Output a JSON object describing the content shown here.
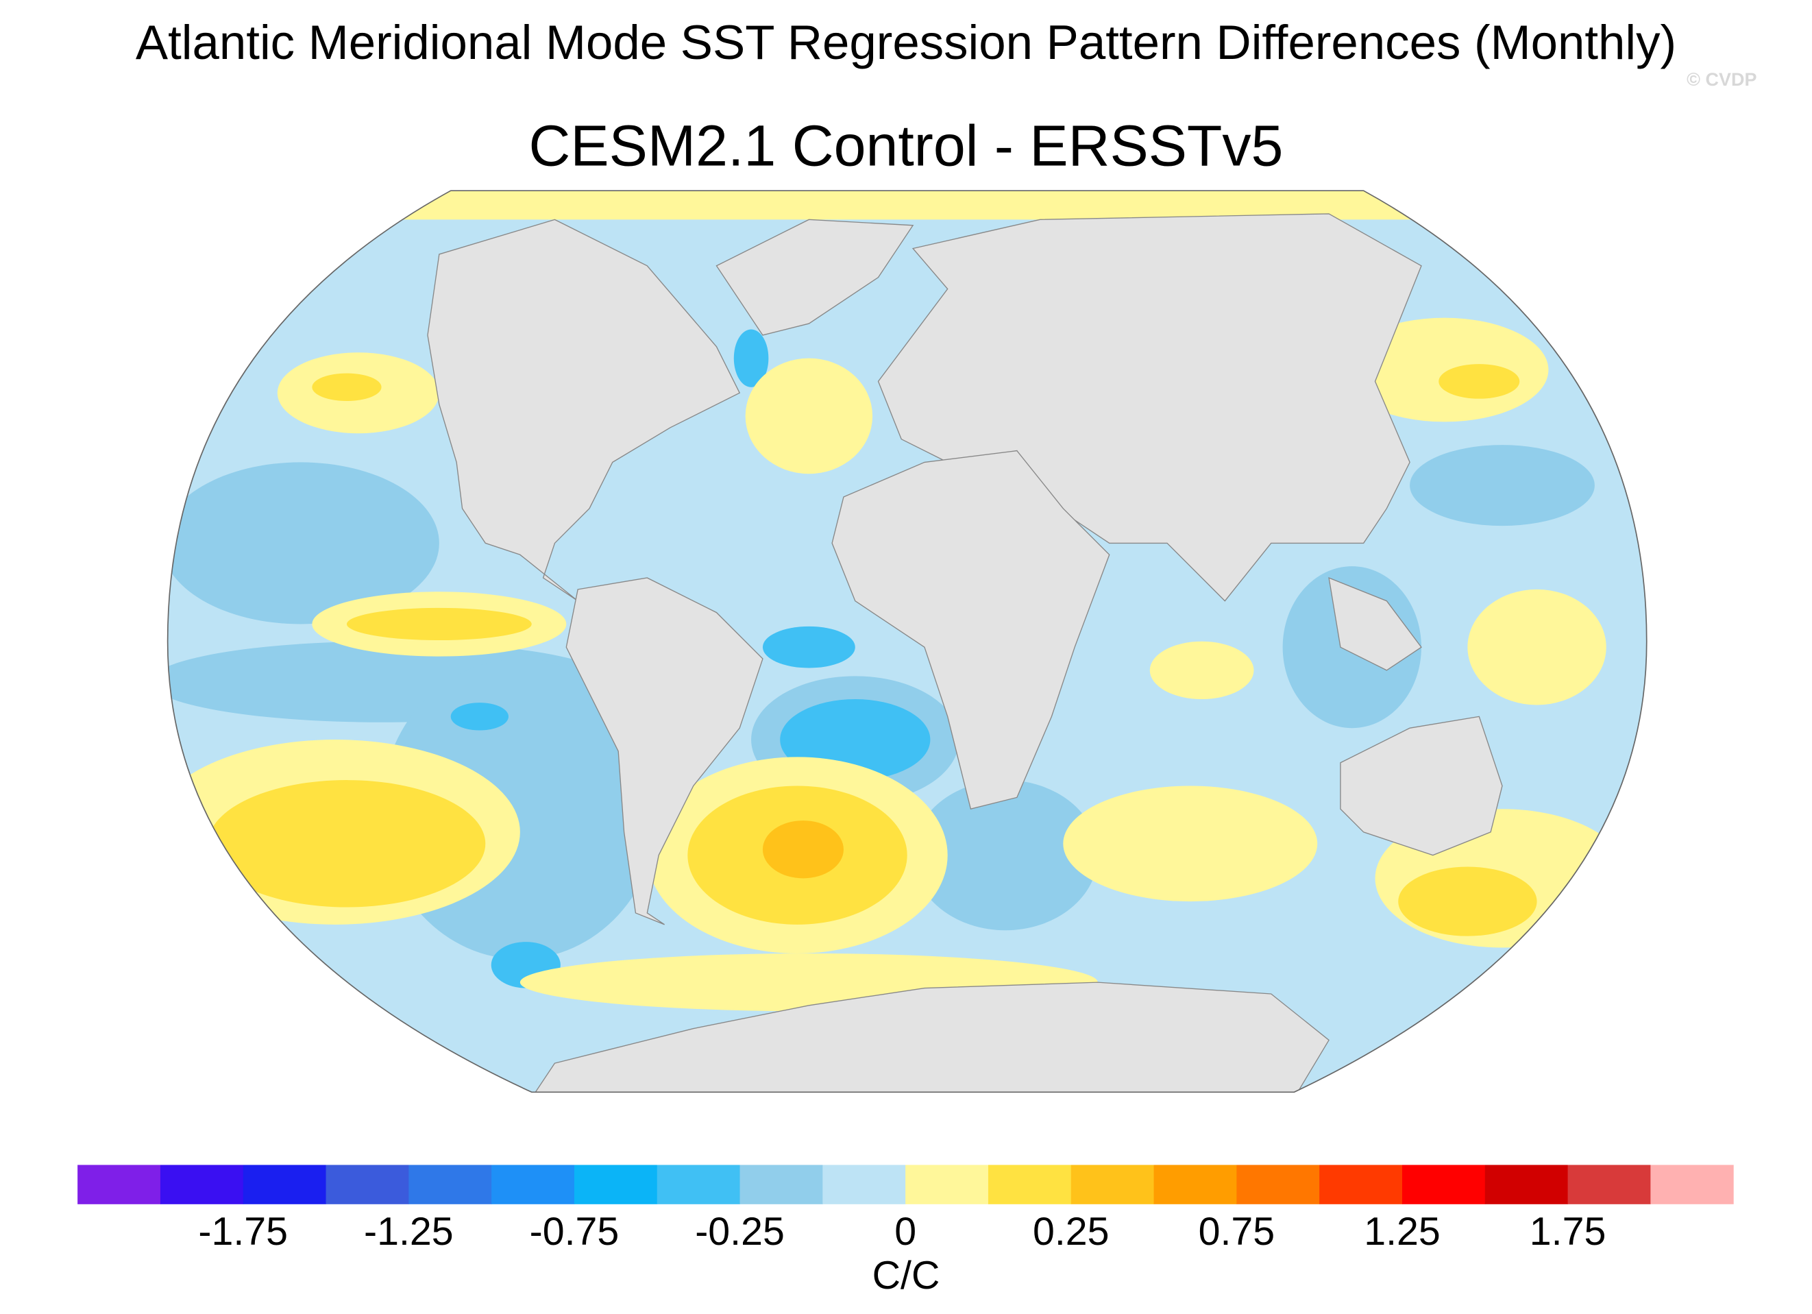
{
  "title": "Atlantic Meridional Mode SST Regression Pattern Differences (Monthly)",
  "subtitle": "CESM2.1 Control - ERSSTv5",
  "watermark": "© CVDP",
  "colorbar": {
    "colors": [
      "#7f1fe8",
      "#3a0ff2",
      "#1a1ff0",
      "#3b5bdc",
      "#2f78e8",
      "#1e90f7",
      "#0bb4f7",
      "#40c0f4",
      "#91ceeb",
      "#bde3f5",
      "#fff79a",
      "#ffe241",
      "#ffc21a",
      "#ff9d00",
      "#ff7700",
      "#ff3a00",
      "#ff0000",
      "#d10000",
      "#d83a3a",
      "#ffb1b1"
    ],
    "ticks": [
      -1.75,
      -1.25,
      -0.75,
      -0.25,
      0,
      0.25,
      0.75,
      1.25,
      1.75
    ],
    "label": "C/C"
  }
}
